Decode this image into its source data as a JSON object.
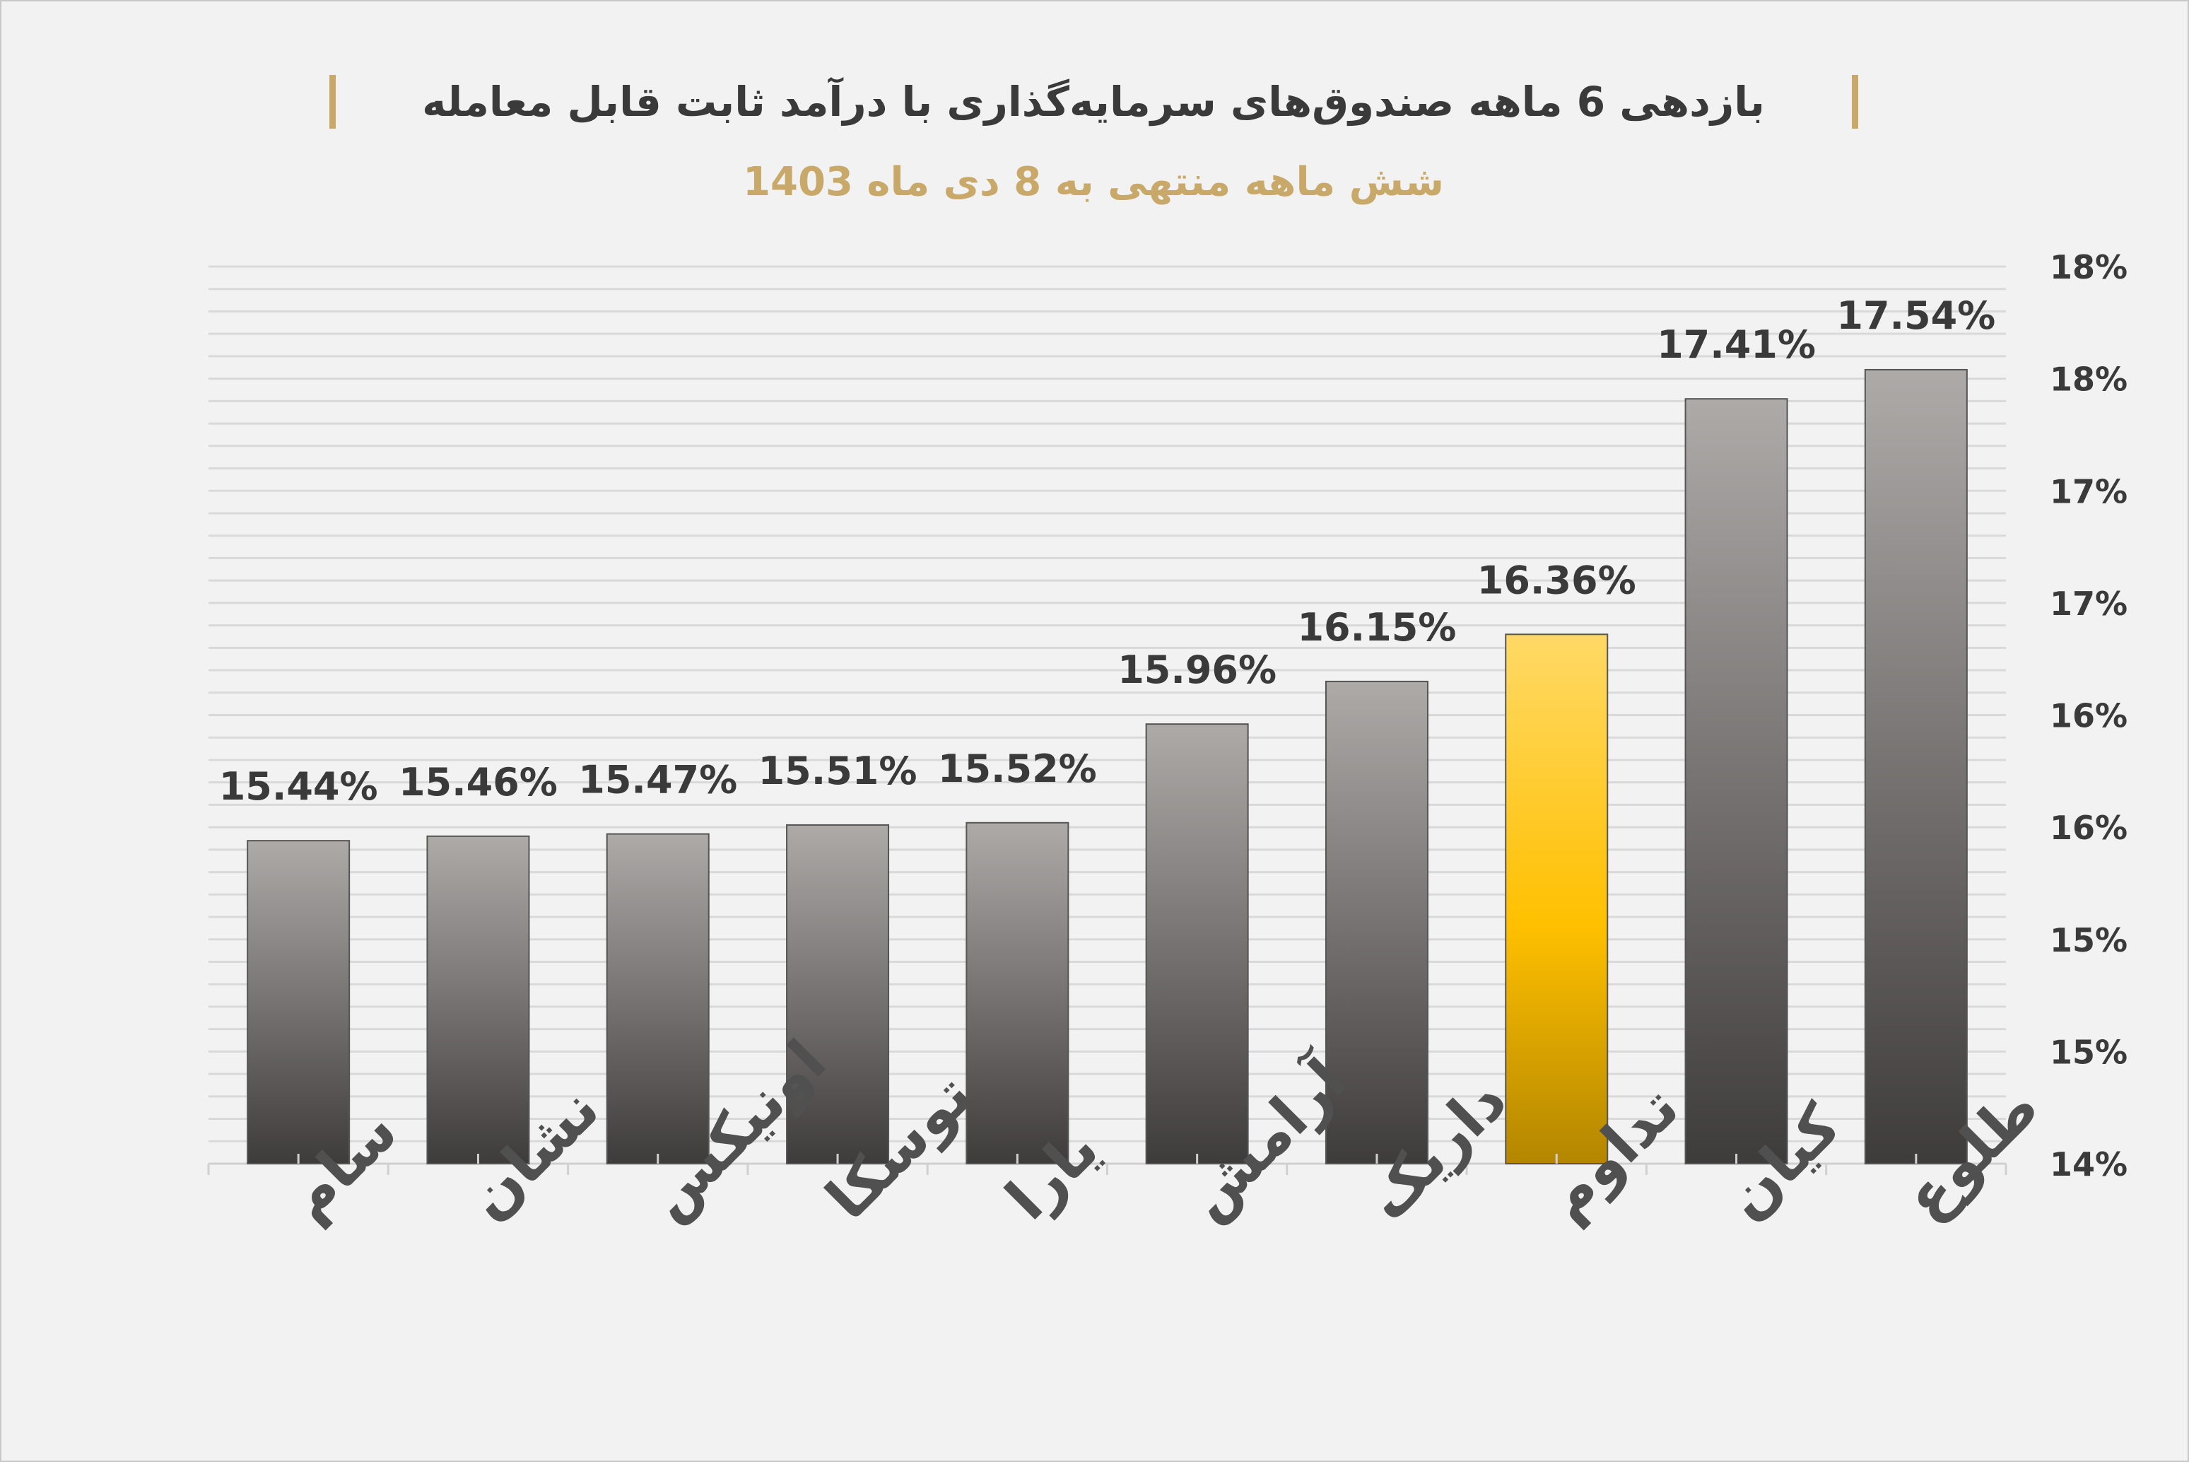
{
  "colors": {
    "background": "#f2f2f2",
    "bar_top": "#aeaaa8",
    "bar_bottom": "#3e3c3b",
    "highlight_top": "#ffd966",
    "highlight_mid": "#ffc000",
    "highlight_bottom": "#b38600",
    "title_bar": "#c9a96a"
  },
  "chart_data": {
    "type": "bar",
    "title": "بازدهی 6 ماهه صندوق‌های سرمایه‌گذاری با درآمد ثابت قابل معامله",
    "subtitle": "شش ماهه منتهی به 8 دی ماه 1403",
    "categories": [
      "سام",
      "نشان",
      "اونیکس",
      "توسکا",
      "یارا",
      "آرامش",
      "داریک",
      "تداوم",
      "کیان",
      "طلوع"
    ],
    "values": [
      15.44,
      15.46,
      15.47,
      15.51,
      15.52,
      15.96,
      16.15,
      16.36,
      17.41,
      17.54
    ],
    "value_labels": [
      "15.44%",
      "15.46%",
      "15.47%",
      "15.51%",
      "15.52%",
      "15.96%",
      "16.15%",
      "16.36%",
      "17.41%",
      "17.54%"
    ],
    "highlight_index": 7,
    "ylim": [
      14,
      18
    ],
    "y_tick_labels": [
      "14%",
      "15%",
      "15%",
      "16%",
      "16%",
      "17%",
      "17%",
      "18%",
      "18%"
    ],
    "y_axis_position": "right",
    "grid": true,
    "xlabel": "",
    "ylabel": ""
  }
}
